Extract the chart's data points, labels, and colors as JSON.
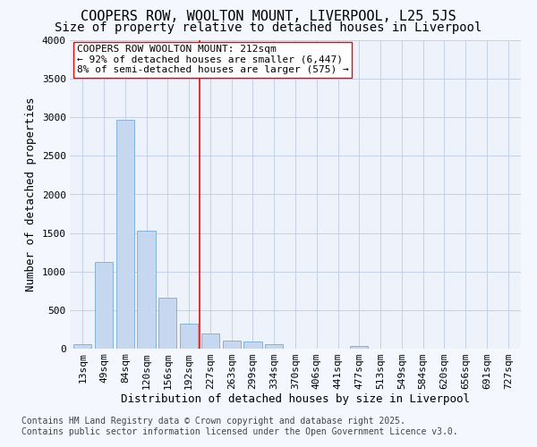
{
  "title": "COOPERS ROW, WOOLTON MOUNT, LIVERPOOL, L25 5JS",
  "subtitle": "Size of property relative to detached houses in Liverpool",
  "xlabel": "Distribution of detached houses by size in Liverpool",
  "ylabel": "Number of detached properties",
  "annotation_line1": "COOPERS ROW WOOLTON MOUNT: 212sqm",
  "annotation_line2": "← 92% of detached houses are smaller (6,447)",
  "annotation_line3": "8% of semi-detached houses are larger (575) →",
  "footer_line1": "Contains HM Land Registry data © Crown copyright and database right 2025.",
  "footer_line2": "Contains public sector information licensed under the Open Government Licence v3.0.",
  "categories": [
    "13sqm",
    "49sqm",
    "84sqm",
    "120sqm",
    "156sqm",
    "192sqm",
    "227sqm",
    "263sqm",
    "299sqm",
    "334sqm",
    "370sqm",
    "406sqm",
    "441sqm",
    "477sqm",
    "513sqm",
    "549sqm",
    "584sqm",
    "620sqm",
    "656sqm",
    "691sqm",
    "727sqm"
  ],
  "values": [
    55,
    1120,
    2970,
    1530,
    660,
    330,
    200,
    100,
    90,
    60,
    0,
    0,
    0,
    30,
    0,
    0,
    0,
    0,
    0,
    0,
    0
  ],
  "bar_color": "#c5d8f0",
  "bar_edge_color": "#7aaad4",
  "vline_x_index": 6,
  "vline_color": "red",
  "ylim": [
    0,
    4000
  ],
  "yticks": [
    0,
    500,
    1000,
    1500,
    2000,
    2500,
    3000,
    3500,
    4000
  ],
  "bg_color": "#eef2fa",
  "grid_color": "#c5cfe8",
  "fig_bg_color": "#f5f7ff",
  "title_fontsize": 11,
  "subtitle_fontsize": 10,
  "xlabel_fontsize": 9,
  "ylabel_fontsize": 9,
  "tick_fontsize": 8,
  "annot_fontsize": 8,
  "footer_fontsize": 7
}
